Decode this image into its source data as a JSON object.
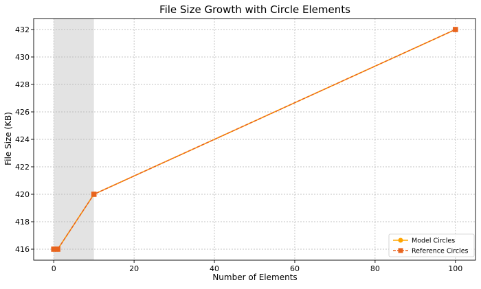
{
  "chart_data": {
    "type": "line",
    "title": "File Size Growth with Circle Elements",
    "xlabel": "Number of Elements",
    "ylabel": "File Size (KB)",
    "xlim": [
      -5,
      105
    ],
    "ylim": [
      415.2,
      432.8
    ],
    "x_ticks": [
      0,
      20,
      40,
      60,
      80,
      100
    ],
    "y_ticks": [
      416,
      418,
      420,
      422,
      424,
      426,
      428,
      430,
      432
    ],
    "grid": true,
    "legend_position": "bottom-right",
    "shaded_x_range": [
      0,
      10
    ],
    "series": [
      {
        "name": "Model Circles",
        "marker": "circle",
        "color": "#FFA500",
        "x": [
          0,
          1,
          10,
          100
        ],
        "y": [
          416,
          416,
          420,
          432
        ]
      },
      {
        "name": "Reference Circles",
        "marker": "square",
        "color": "#E8641E",
        "dashed": true,
        "x": [
          0,
          1,
          10,
          100
        ],
        "y": [
          416,
          416,
          420,
          432
        ]
      }
    ]
  }
}
